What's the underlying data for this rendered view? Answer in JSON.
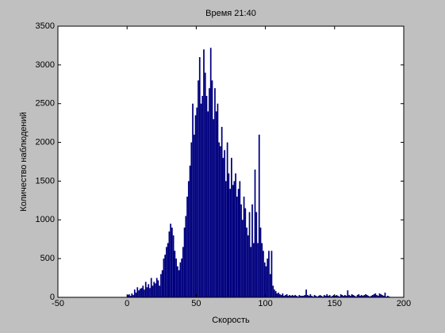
{
  "chart_data": {
    "type": "histogram",
    "title": "Время 21:40",
    "x_label": "Скорость",
    "y_label": "Количество наблюдений",
    "color": "#00007f",
    "bins": [
      0,
      1,
      2,
      3,
      4,
      5,
      6,
      7,
      8,
      9,
      10,
      11,
      12,
      13,
      14,
      15,
      16,
      17,
      18,
      19,
      20,
      21,
      22,
      23,
      24,
      25,
      26,
      27,
      28,
      29,
      30,
      31,
      32,
      33,
      34,
      35,
      36,
      37,
      38,
      39,
      40,
      41,
      42,
      43,
      44,
      45,
      46,
      47,
      48,
      49,
      50,
      51,
      52,
      53,
      54,
      55,
      56,
      57,
      58,
      59,
      60,
      61,
      62,
      63,
      64,
      65,
      66,
      67,
      68,
      69,
      70,
      71,
      72,
      73,
      74,
      75,
      76,
      77,
      78,
      79,
      80,
      81,
      82,
      83,
      84,
      85,
      86,
      87,
      88,
      89,
      90,
      91,
      92,
      93,
      94,
      95,
      96,
      97,
      98,
      99,
      100,
      101,
      102,
      103,
      104,
      105,
      106,
      107,
      108,
      109,
      110,
      111,
      112,
      113,
      114,
      115,
      116,
      117,
      118,
      119,
      120,
      121,
      122,
      123,
      124,
      125,
      126,
      127,
      128,
      129,
      130,
      131,
      132,
      133,
      134,
      135,
      136,
      137,
      138,
      139,
      140,
      141,
      142,
      143,
      144,
      145,
      146,
      147,
      148,
      149,
      150,
      151,
      152,
      153,
      154,
      155,
      156,
      157,
      158,
      159,
      160,
      161,
      162,
      163,
      164,
      165,
      166,
      167,
      168,
      169,
      170,
      171,
      172,
      173,
      174,
      175,
      176,
      177,
      178,
      179,
      180,
      181,
      182,
      183,
      184,
      185,
      186,
      187,
      188,
      189,
      190
    ],
    "values": [
      30,
      40,
      20,
      50,
      30,
      100,
      60,
      130,
      90,
      110,
      120,
      150,
      100,
      200,
      130,
      170,
      120,
      250,
      150,
      200,
      180,
      250,
      220,
      150,
      300,
      350,
      500,
      550,
      650,
      700,
      850,
      950,
      900,
      800,
      600,
      500,
      400,
      350,
      450,
      500,
      650,
      900,
      1050,
      1300,
      1500,
      1700,
      2000,
      2500,
      2100,
      2350,
      2450,
      2800,
      3100,
      2500,
      2600,
      3200,
      2900,
      2600,
      2400,
      2700,
      3220,
      2800,
      2300,
      2700,
      2400,
      2500,
      2000,
      1950,
      2200,
      1800,
      1900,
      1500,
      2000,
      1600,
      1400,
      1800,
      1450,
      1500,
      1600,
      1300,
      1400,
      1500,
      1200,
      1000,
      1300,
      1150,
      900,
      800,
      1100,
      650,
      1200,
      700,
      1650,
      1100,
      700,
      2100,
      900,
      700,
      600,
      450,
      400,
      500,
      600,
      300,
      600,
      150,
      100,
      80,
      50,
      60,
      40,
      30,
      50,
      20,
      30,
      40,
      20,
      30,
      20,
      30,
      20,
      30,
      20,
      10,
      30,
      20,
      20,
      20,
      30,
      100,
      30,
      20,
      40,
      20,
      10,
      30,
      20,
      10,
      20,
      30,
      20,
      10,
      30,
      20,
      40,
      20,
      30,
      10,
      20,
      30,
      20,
      30,
      20,
      10,
      40,
      30,
      20,
      30,
      20,
      90,
      30,
      20,
      40,
      30,
      20,
      10,
      30,
      40,
      20,
      30,
      20,
      30,
      40,
      30,
      20,
      10,
      20,
      30,
      40,
      50,
      30,
      20,
      50,
      40,
      30,
      20,
      60,
      10,
      20,
      10
    ],
    "xlim": [
      -50,
      200
    ],
    "xticks": [
      -50,
      0,
      50,
      100,
      150,
      200
    ],
    "ylim": [
      0,
      3500
    ],
    "yticks": [
      0,
      500,
      1000,
      1500,
      2000,
      2500,
      3000,
      3500
    ]
  }
}
